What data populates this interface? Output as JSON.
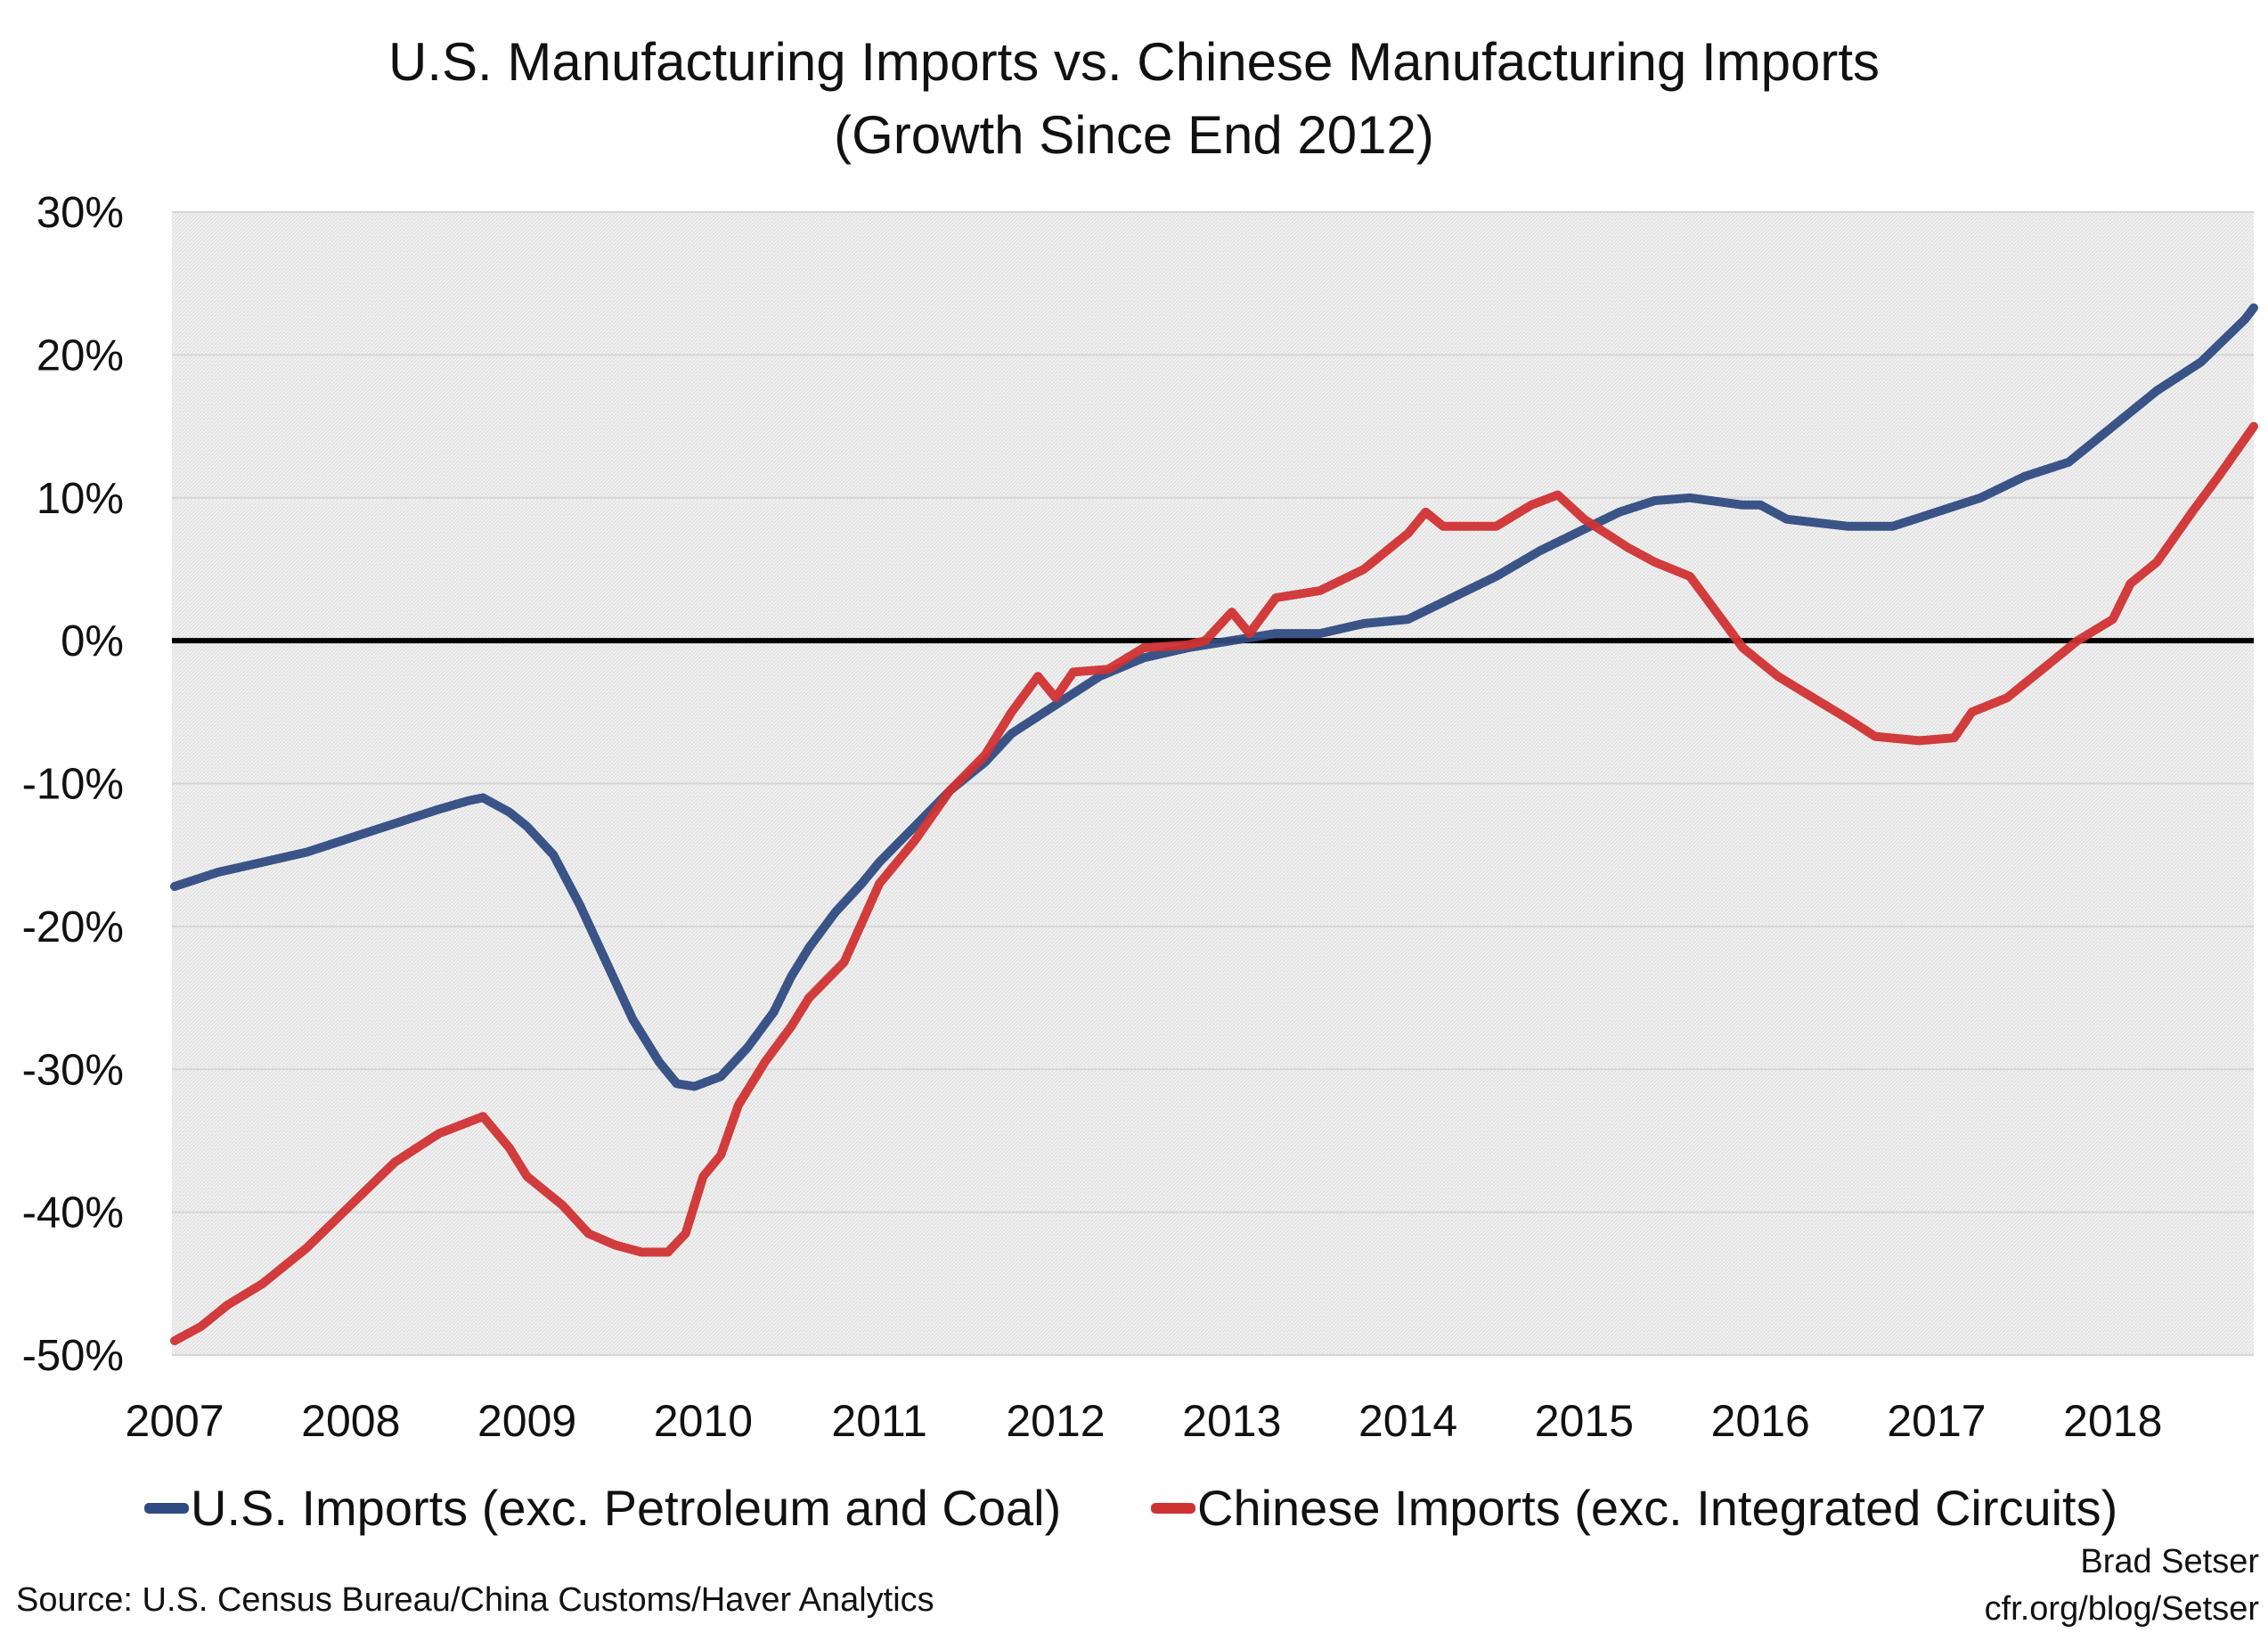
{
  "chart_data": {
    "type": "line",
    "title": "U.S. Manufacturing Imports vs. Chinese Manufacturing Imports",
    "subtitle": "(Growth Since End 2012)",
    "xlabel": "",
    "ylabel": "",
    "ylim": [
      -50,
      30
    ],
    "xlim": [
      2007,
      2018.8
    ],
    "yticks": [
      30,
      20,
      10,
      0,
      -10,
      -20,
      -30,
      -40,
      -50
    ],
    "ytick_labels": [
      "30%",
      "20%",
      "10%",
      "0%",
      "-10%",
      "-20%",
      "-30%",
      "-40%",
      "-50%"
    ],
    "xticks": [
      2007,
      2008,
      2009,
      2010,
      2011,
      2012,
      2013,
      2014,
      2015,
      2016,
      2017,
      2018
    ],
    "xtick_labels": [
      "2007",
      "2008",
      "2009",
      "2010",
      "2011",
      "2012",
      "2013",
      "2014",
      "2015",
      "2016",
      "2017",
      "2018"
    ],
    "grid": true,
    "zero_line": true,
    "legend_position": "bottom",
    "series": [
      {
        "name": "U.S. Imports (exc. Petroleum and Coal)",
        "color": "#2f4b82",
        "points": [
          [
            2007.0,
            -17.2
          ],
          [
            2007.25,
            -16.2
          ],
          [
            2007.5,
            -15.5
          ],
          [
            2007.75,
            -14.8
          ],
          [
            2008.0,
            -13.8
          ],
          [
            2008.25,
            -12.8
          ],
          [
            2008.5,
            -11.8
          ],
          [
            2008.67,
            -11.2
          ],
          [
            2008.75,
            -11.0
          ],
          [
            2008.9,
            -12.0
          ],
          [
            2009.0,
            -13.0
          ],
          [
            2009.15,
            -15.0
          ],
          [
            2009.3,
            -18.5
          ],
          [
            2009.45,
            -22.5
          ],
          [
            2009.6,
            -26.5
          ],
          [
            2009.75,
            -29.5
          ],
          [
            2009.85,
            -31.0
          ],
          [
            2009.95,
            -31.2
          ],
          [
            2010.1,
            -30.5
          ],
          [
            2010.25,
            -28.5
          ],
          [
            2010.4,
            -26.0
          ],
          [
            2010.5,
            -23.5
          ],
          [
            2010.6,
            -21.5
          ],
          [
            2010.75,
            -19.0
          ],
          [
            2010.9,
            -17.0
          ],
          [
            2011.0,
            -15.5
          ],
          [
            2011.2,
            -13.0
          ],
          [
            2011.4,
            -10.5
          ],
          [
            2011.6,
            -8.5
          ],
          [
            2011.75,
            -6.5
          ],
          [
            2012.0,
            -4.5
          ],
          [
            2012.25,
            -2.5
          ],
          [
            2012.5,
            -1.2
          ],
          [
            2012.75,
            -0.5
          ],
          [
            2013.0,
            0.0
          ],
          [
            2013.25,
            0.5
          ],
          [
            2013.5,
            0.5
          ],
          [
            2013.75,
            1.2
          ],
          [
            2014.0,
            1.5
          ],
          [
            2014.25,
            3.0
          ],
          [
            2014.5,
            4.5
          ],
          [
            2014.75,
            6.3
          ],
          [
            2015.0,
            7.8
          ],
          [
            2015.2,
            9.0
          ],
          [
            2015.4,
            9.8
          ],
          [
            2015.6,
            10.0
          ],
          [
            2015.9,
            9.5
          ],
          [
            2016.0,
            9.5
          ],
          [
            2016.15,
            8.5
          ],
          [
            2016.5,
            8.0
          ],
          [
            2016.75,
            8.0
          ],
          [
            2017.0,
            9.0
          ],
          [
            2017.25,
            10.0
          ],
          [
            2017.5,
            11.5
          ],
          [
            2017.75,
            12.5
          ],
          [
            2018.0,
            15.0
          ],
          [
            2018.25,
            17.5
          ],
          [
            2018.5,
            19.5
          ],
          [
            2018.75,
            22.5
          ],
          [
            2018.8,
            23.3
          ]
        ]
      },
      {
        "name": "Chinese Imports (exc. Integrated Circuits)",
        "color": "#d03232",
        "points": [
          [
            2007.0,
            -49.0
          ],
          [
            2007.15,
            -48.0
          ],
          [
            2007.3,
            -46.5
          ],
          [
            2007.5,
            -45.0
          ],
          [
            2007.75,
            -42.5
          ],
          [
            2008.0,
            -39.5
          ],
          [
            2008.25,
            -36.5
          ],
          [
            2008.5,
            -34.5
          ],
          [
            2008.75,
            -33.3
          ],
          [
            2008.9,
            -35.5
          ],
          [
            2009.0,
            -37.5
          ],
          [
            2009.2,
            -39.5
          ],
          [
            2009.35,
            -41.5
          ],
          [
            2009.5,
            -42.3
          ],
          [
            2009.65,
            -42.8
          ],
          [
            2009.8,
            -42.8
          ],
          [
            2009.9,
            -41.5
          ],
          [
            2010.0,
            -37.5
          ],
          [
            2010.1,
            -36.0
          ],
          [
            2010.2,
            -32.5
          ],
          [
            2010.35,
            -29.5
          ],
          [
            2010.5,
            -27.0
          ],
          [
            2010.6,
            -25.0
          ],
          [
            2010.8,
            -22.5
          ],
          [
            2011.0,
            -17.0
          ],
          [
            2011.2,
            -14.0
          ],
          [
            2011.4,
            -10.5
          ],
          [
            2011.6,
            -8.0
          ],
          [
            2011.75,
            -5.0
          ],
          [
            2011.9,
            -2.5
          ],
          [
            2012.0,
            -4.0
          ],
          [
            2012.1,
            -2.2
          ],
          [
            2012.3,
            -2.0
          ],
          [
            2012.5,
            -0.5
          ],
          [
            2012.75,
            -0.3
          ],
          [
            2012.85,
            0.0
          ],
          [
            2013.0,
            2.0
          ],
          [
            2013.1,
            0.5
          ],
          [
            2013.25,
            3.0
          ],
          [
            2013.5,
            3.5
          ],
          [
            2013.75,
            5.0
          ],
          [
            2014.0,
            7.5
          ],
          [
            2014.1,
            9.0
          ],
          [
            2014.2,
            8.0
          ],
          [
            2014.5,
            8.0
          ],
          [
            2014.7,
            9.5
          ],
          [
            2014.85,
            10.2
          ],
          [
            2015.0,
            8.5
          ],
          [
            2015.25,
            6.5
          ],
          [
            2015.4,
            5.5
          ],
          [
            2015.6,
            4.5
          ],
          [
            2015.75,
            2.0
          ],
          [
            2015.9,
            -0.5
          ],
          [
            2016.1,
            -2.5
          ],
          [
            2016.3,
            -4.0
          ],
          [
            2016.5,
            -5.5
          ],
          [
            2016.65,
            -6.7
          ],
          [
            2016.9,
            -7.0
          ],
          [
            2017.1,
            -6.8
          ],
          [
            2017.2,
            -5.0
          ],
          [
            2017.4,
            -4.0
          ],
          [
            2017.6,
            -2.0
          ],
          [
            2017.8,
            0.0
          ],
          [
            2018.0,
            1.5
          ],
          [
            2018.1,
            4.0
          ],
          [
            2018.25,
            5.5
          ],
          [
            2018.45,
            9.0
          ],
          [
            2018.6,
            11.5
          ],
          [
            2018.8,
            15.0
          ]
        ]
      }
    ]
  },
  "footer": {
    "source": "Source: U.S. Census Bureau/China Customs/Haver Analytics",
    "author": "Brad Setser",
    "url": "cfr.org/blog/Setser"
  }
}
